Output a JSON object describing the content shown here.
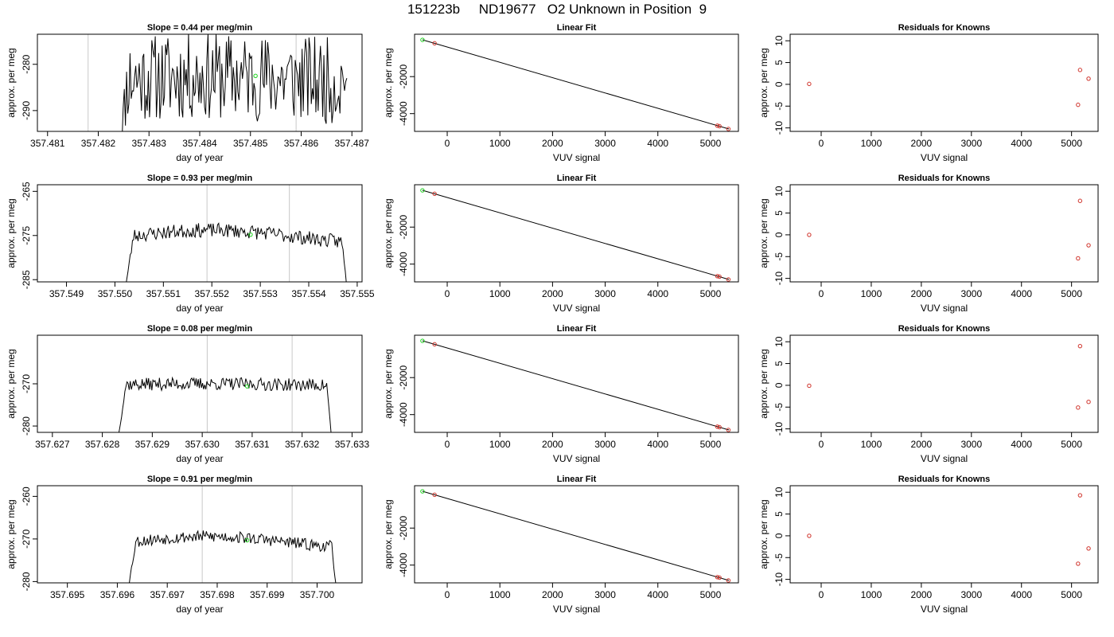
{
  "figure": {
    "title": "151223b     ND19677   O2 Unknown in Position  9"
  },
  "chart_data": [
    {
      "type": "line",
      "panel": "time-series",
      "row": 1,
      "title": "Slope =  0.44  per meg/min",
      "xlabel": "day of year",
      "ylabel": "approx. per meg",
      "xlim": [
        357.4808,
        357.4872
      ],
      "ylim": [
        -294.5,
        -273.5
      ],
      "xticks": [
        357.481,
        357.482,
        357.483,
        357.484,
        357.485,
        357.486,
        357.487
      ],
      "xtick_labels": [
        "357.481",
        "357.482",
        "357.483",
        "357.484",
        "357.485",
        "357.486",
        "357.487"
      ],
      "yticks": [
        -290,
        -280
      ],
      "ytick_labels": [
        "-290",
        "-280"
      ],
      "vlines": [
        357.4818,
        357.4859
      ],
      "trace": {
        "x_start": 357.4824,
        "x_end": 357.4869,
        "n": 200,
        "level": -283.2,
        "noise": 9.5,
        "drift": 0.6,
        "seed": 11,
        "pre": -300,
        "post": -283
      },
      "marker": {
        "x": 357.4851,
        "y": -282.5
      }
    },
    {
      "type": "scatter",
      "panel": "linear-fit",
      "row": 1,
      "title": "Linear Fit",
      "xlabel": "VUV signal",
      "ylabel": "approx. per meg",
      "xlim": [
        -620,
        5530
      ],
      "ylim": [
        -4960,
        290
      ],
      "xticks": [
        0,
        1000,
        2000,
        3000,
        4000,
        5000
      ],
      "xtick_labels": [
        "0",
        "1000",
        "2000",
        "3000",
        "4000",
        "5000"
      ],
      "yticks": [
        -4000,
        -2000
      ],
      "ytick_labels": [
        "-4000",
        "-2000"
      ],
      "line": {
        "x": [
          -470,
          5350
        ],
        "y": [
          -10,
          -4830
        ]
      },
      "points_red": [
        {
          "x": -240,
          "y": -200
        },
        {
          "x": 5130,
          "y": -4650
        },
        {
          "x": 5170,
          "y": -4680
        },
        {
          "x": 5340,
          "y": -4830
        }
      ],
      "points_green": [
        {
          "x": -470,
          "y": -15
        }
      ]
    },
    {
      "type": "scatter",
      "panel": "residuals",
      "row": 1,
      "title": "Residuals for Knowns",
      "xlabel": "VUV signal",
      "ylabel": "approx. per meg",
      "xlim": [
        -620,
        5530
      ],
      "ylim": [
        -10.8,
        11.5
      ],
      "xticks": [
        0,
        1000,
        2000,
        3000,
        4000,
        5000
      ],
      "xtick_labels": [
        "0",
        "1000",
        "2000",
        "3000",
        "4000",
        "5000"
      ],
      "yticks": [
        -10,
        -5,
        0,
        5,
        10
      ],
      "ytick_labels": [
        "-10",
        "-5",
        "0",
        "5",
        "10"
      ],
      "points_red": [
        {
          "x": -240,
          "y": 0.1
        },
        {
          "x": 5130,
          "y": -4.7
        },
        {
          "x": 5170,
          "y": 3.3
        },
        {
          "x": 5340,
          "y": 1.3
        }
      ]
    },
    {
      "type": "line",
      "panel": "time-series",
      "row": 2,
      "title": "Slope =  0.93  per meg/min",
      "xlabel": "day of year",
      "ylabel": "approx. per meg",
      "xlim": [
        357.5484,
        357.5551
      ],
      "ylim": [
        -285.5,
        -263.5
      ],
      "xticks": [
        357.549,
        357.55,
        357.551,
        357.552,
        357.553,
        357.554,
        357.555
      ],
      "xtick_labels": [
        "357.549",
        "357.550",
        "357.551",
        "357.552",
        "357.553",
        "357.554",
        "357.555"
      ],
      "yticks": [
        -285,
        -275,
        -265
      ],
      "ytick_labels": [
        "-285",
        "-275",
        "-265"
      ],
      "vlines": [
        357.5519,
        357.5536
      ],
      "trace": {
        "x_start": 357.5502,
        "x_end": 357.5548,
        "n": 200,
        "level": -275.3,
        "noise": 1.6,
        "drift": 1.5,
        "seed": 23,
        "pre": -288,
        "post": -288
      },
      "marker": {
        "x": 357.5528,
        "y": -274.8
      }
    },
    {
      "type": "scatter",
      "panel": "linear-fit",
      "row": 2,
      "title": "Linear Fit",
      "xlabel": "VUV signal",
      "ylabel": "approx. per meg",
      "xlim": [
        -620,
        5530
      ],
      "ylim": [
        -4960,
        290
      ],
      "xticks": [
        0,
        1000,
        2000,
        3000,
        4000,
        5000
      ],
      "xtick_labels": [
        "0",
        "1000",
        "2000",
        "3000",
        "4000",
        "5000"
      ],
      "yticks": [
        -4000,
        -2000
      ],
      "ytick_labels": [
        "-4000",
        "-2000"
      ],
      "line": {
        "x": [
          -470,
          5350
        ],
        "y": [
          -10,
          -4830
        ]
      },
      "points_red": [
        {
          "x": -240,
          "y": -200
        },
        {
          "x": 5130,
          "y": -4650
        },
        {
          "x": 5170,
          "y": -4680
        },
        {
          "x": 5340,
          "y": -4830
        }
      ],
      "points_green": [
        {
          "x": -470,
          "y": -15
        }
      ]
    },
    {
      "type": "scatter",
      "panel": "residuals",
      "row": 2,
      "title": "Residuals for Knowns",
      "xlabel": "VUV signal",
      "ylabel": "approx. per meg",
      "xlim": [
        -620,
        5530
      ],
      "ylim": [
        -10.8,
        11.5
      ],
      "xticks": [
        0,
        1000,
        2000,
        3000,
        4000,
        5000
      ],
      "xtick_labels": [
        "0",
        "1000",
        "2000",
        "3000",
        "4000",
        "5000"
      ],
      "yticks": [
        -10,
        -5,
        0,
        5,
        10
      ],
      "ytick_labels": [
        "-10",
        "-5",
        "0",
        "5",
        "10"
      ],
      "points_red": [
        {
          "x": -240,
          "y": 0.0
        },
        {
          "x": 5130,
          "y": -5.4
        },
        {
          "x": 5170,
          "y": 7.8
        },
        {
          "x": 5340,
          "y": -2.4
        }
      ]
    },
    {
      "type": "line",
      "panel": "time-series",
      "row": 3,
      "title": "Slope =  0.08  per meg/min",
      "xlabel": "day of year",
      "ylabel": "approx. per meg",
      "xlim": [
        357.6267,
        357.6332
      ],
      "ylim": [
        -281.5,
        -258.5
      ],
      "xticks": [
        357.627,
        357.628,
        357.629,
        357.63,
        357.631,
        357.632,
        357.633
      ],
      "xtick_labels": [
        "357.627",
        "357.628",
        "357.629",
        "357.630",
        "357.631",
        "357.632",
        "357.633"
      ],
      "yticks": [
        -280,
        -270
      ],
      "ytick_labels": [
        "-280",
        "-270"
      ],
      "vlines": [
        357.6301,
        357.6318
      ],
      "trace": {
        "x_start": 357.6283,
        "x_end": 357.6326,
        "n": 200,
        "level": -270.2,
        "noise": 1.5,
        "drift": 0.2,
        "seed": 37,
        "pre": -284,
        "post": -284
      },
      "marker": {
        "x": 357.6309,
        "y": -270.6
      }
    },
    {
      "type": "scatter",
      "panel": "linear-fit",
      "row": 3,
      "title": "Linear Fit",
      "xlabel": "VUV signal",
      "ylabel": "approx. per meg",
      "xlim": [
        -620,
        5530
      ],
      "ylim": [
        -4960,
        290
      ],
      "xticks": [
        0,
        1000,
        2000,
        3000,
        4000,
        5000
      ],
      "xtick_labels": [
        "0",
        "1000",
        "2000",
        "3000",
        "4000",
        "5000"
      ],
      "yticks": [
        -4000,
        -2000
      ],
      "ytick_labels": [
        "-4000",
        "-2000"
      ],
      "line": {
        "x": [
          -470,
          5350
        ],
        "y": [
          -10,
          -4830
        ]
      },
      "points_red": [
        {
          "x": -240,
          "y": -200
        },
        {
          "x": 5130,
          "y": -4650
        },
        {
          "x": 5170,
          "y": -4680
        },
        {
          "x": 5340,
          "y": -4830
        }
      ],
      "points_green": [
        {
          "x": -470,
          "y": -15
        }
      ]
    },
    {
      "type": "scatter",
      "panel": "residuals",
      "row": 3,
      "title": "Residuals for Knowns",
      "xlabel": "VUV signal",
      "ylabel": "approx. per meg",
      "xlim": [
        -620,
        5530
      ],
      "ylim": [
        -10.8,
        11.5
      ],
      "xticks": [
        0,
        1000,
        2000,
        3000,
        4000,
        5000
      ],
      "xtick_labels": [
        "0",
        "1000",
        "2000",
        "3000",
        "4000",
        "5000"
      ],
      "yticks": [
        -10,
        -5,
        0,
        5,
        10
      ],
      "ytick_labels": [
        "-10",
        "-5",
        "0",
        "5",
        "10"
      ],
      "points_red": [
        {
          "x": -240,
          "y": -0.1
        },
        {
          "x": 5130,
          "y": -5.1
        },
        {
          "x": 5170,
          "y": 9.0
        },
        {
          "x": 5340,
          "y": -3.8
        }
      ]
    },
    {
      "type": "line",
      "panel": "time-series",
      "row": 4,
      "title": "Slope =  0.91  per meg/min",
      "xlabel": "day of year",
      "ylabel": "approx. per meg",
      "xlim": [
        357.6944,
        357.7009
      ],
      "ylim": [
        -280.3,
        -257.5
      ],
      "xticks": [
        357.695,
        357.696,
        357.697,
        357.698,
        357.699,
        357.7
      ],
      "xtick_labels": [
        "357.695",
        "357.696",
        "357.697",
        "357.698",
        "357.699",
        "357.700"
      ],
      "yticks": [
        -280,
        -270,
        -260
      ],
      "ytick_labels": [
        "-280",
        "-270",
        "-260"
      ],
      "vlines": [
        357.6977,
        357.6995
      ],
      "trace": {
        "x_start": 357.6962,
        "x_end": 357.7004,
        "n": 200,
        "level": -270.8,
        "noise": 1.4,
        "drift": 1.4,
        "seed": 53,
        "pre": -283,
        "post": -283
      },
      "marker": {
        "x": 357.6986,
        "y": -270.3
      }
    },
    {
      "type": "scatter",
      "panel": "linear-fit",
      "row": 4,
      "title": "Linear Fit",
      "xlabel": "VUV signal",
      "ylabel": "approx. per meg",
      "xlim": [
        -620,
        5530
      ],
      "ylim": [
        -4960,
        290
      ],
      "xticks": [
        0,
        1000,
        2000,
        3000,
        4000,
        5000
      ],
      "xtick_labels": [
        "0",
        "1000",
        "2000",
        "3000",
        "4000",
        "5000"
      ],
      "yticks": [
        -4000,
        -2000
      ],
      "ytick_labels": [
        "-4000",
        "-2000"
      ],
      "line": {
        "x": [
          -470,
          5350
        ],
        "y": [
          -10,
          -4830
        ]
      },
      "points_red": [
        {
          "x": -240,
          "y": -200
        },
        {
          "x": 5130,
          "y": -4650
        },
        {
          "x": 5170,
          "y": -4680
        },
        {
          "x": 5340,
          "y": -4830
        }
      ],
      "points_green": [
        {
          "x": -470,
          "y": -15
        }
      ]
    },
    {
      "type": "scatter",
      "panel": "residuals",
      "row": 4,
      "title": "Residuals for Knowns",
      "xlabel": "VUV signal",
      "ylabel": "approx. per meg",
      "xlim": [
        -620,
        5530
      ],
      "ylim": [
        -10.8,
        11.5
      ],
      "xticks": [
        0,
        1000,
        2000,
        3000,
        4000,
        5000
      ],
      "xtick_labels": [
        "0",
        "1000",
        "2000",
        "3000",
        "4000",
        "5000"
      ],
      "yticks": [
        -10,
        -5,
        0,
        5,
        10
      ],
      "ytick_labels": [
        "-10",
        "-5",
        "0",
        "5",
        "10"
      ],
      "points_red": [
        {
          "x": -240,
          "y": 0.0
        },
        {
          "x": 5130,
          "y": -6.4
        },
        {
          "x": 5170,
          "y": 9.3
        },
        {
          "x": 5340,
          "y": -2.9
        }
      ]
    }
  ],
  "colors": {
    "line": "#000000",
    "vline": "#c8c8c8",
    "point_red": "#d0342c",
    "point_green": "#1fd41f"
  }
}
